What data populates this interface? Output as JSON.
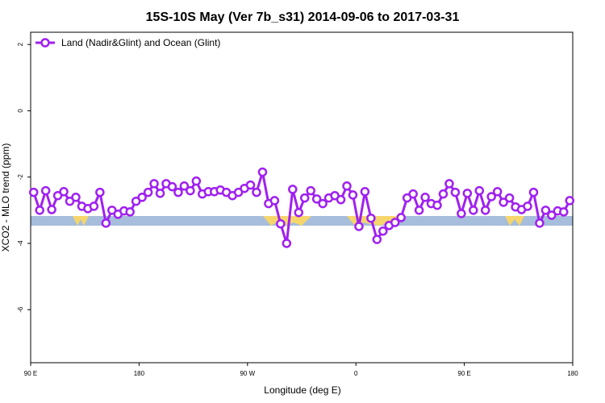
{
  "chart_data": {
    "type": "line",
    "title": "15S-10S May (Ver 7b_s31)   2014-09-06 to 2017-03-31",
    "x_label": "Longitude (deg E)",
    "y_label": "XCO2 - MLO trend (ppm)",
    "xlim": [
      90,
      540
    ],
    "ylim": [
      -7.6,
      2.37
    ],
    "xticks": [
      {
        "value": 90,
        "label": "90 E"
      },
      {
        "value": 180,
        "label": "180"
      },
      {
        "value": 270,
        "label": "90 W"
      },
      {
        "value": 360,
        "label": "0"
      },
      {
        "value": 450,
        "label": "90 E"
      },
      {
        "value": 540,
        "label": "180"
      }
    ],
    "yticks": [
      2,
      0,
      -2,
      -4,
      -6
    ],
    "legend": "top-left",
    "x": [
      92.5,
      97.5,
      102.5,
      107.5,
      112.5,
      117.5,
      122.5,
      127.5,
      132.5,
      137.5,
      142.5,
      147.5,
      152.5,
      157.5,
      162.5,
      167.5,
      172.5,
      177.5,
      182.5,
      187.5,
      192.5,
      197.5,
      202.5,
      207.5,
      212.5,
      217.5,
      222.5,
      227.5,
      232.5,
      237.5,
      242.5,
      247.5,
      252.5,
      257.5,
      262.5,
      267.5,
      272.5,
      277.5,
      282.5,
      287.5,
      292.5,
      297.5,
      302.5,
      307.5,
      312.5,
      317.5,
      322.5,
      327.5,
      332.5,
      337.5,
      342.5,
      347.5,
      352.5,
      357.5,
      362.5,
      367.5,
      372.5,
      377.5,
      382.5,
      387.5,
      392.5,
      397.5,
      402.5,
      407.5,
      412.5,
      417.5,
      422.5,
      427.5,
      432.5,
      437.5,
      442.5,
      447.5,
      452.5,
      457.5,
      462.5,
      467.5,
      472.5,
      477.5,
      482.5,
      487.5,
      492.5,
      497.5,
      502.5,
      507.5,
      512.5,
      517.5,
      522.5,
      527.5,
      532.5,
      537.5
    ],
    "series": [
      {
        "name": "Land (Nadir&Glint) and Ocean (Glint)",
        "color": "#a020f0",
        "values": [
          -2.46,
          -3.0,
          -2.41,
          -2.98,
          -2.56,
          -2.44,
          -2.73,
          -2.61,
          -2.88,
          -2.95,
          -2.88,
          -2.46,
          -3.39,
          -3.0,
          -3.12,
          -3.02,
          -3.05,
          -2.73,
          -2.61,
          -2.46,
          -2.2,
          -2.49,
          -2.2,
          -2.29,
          -2.46,
          -2.27,
          -2.41,
          -2.12,
          -2.51,
          -2.44,
          -2.44,
          -2.39,
          -2.46,
          -2.56,
          -2.46,
          -2.34,
          -2.24,
          -2.46,
          -1.85,
          -2.8,
          -2.71,
          -3.41,
          -4.0,
          -2.37,
          -3.07,
          -2.63,
          -2.41,
          -2.66,
          -2.8,
          -2.63,
          -2.56,
          -2.68,
          -2.27,
          -2.54,
          -3.49,
          -2.44,
          -3.24,
          -3.88,
          -3.63,
          -3.46,
          -3.37,
          -3.22,
          -2.63,
          -2.51,
          -3.0,
          -2.61,
          -2.8,
          -2.85,
          -2.51,
          -2.2,
          -2.46,
          -3.1,
          -2.49,
          -3.0,
          -2.41,
          -3.0,
          -2.59,
          -2.44,
          -2.76,
          -2.63,
          -2.9,
          -2.98,
          -2.88,
          -2.46,
          -3.39,
          -3.0,
          -3.15,
          -3.02,
          -3.05,
          -2.71
        ]
      }
    ]
  }
}
